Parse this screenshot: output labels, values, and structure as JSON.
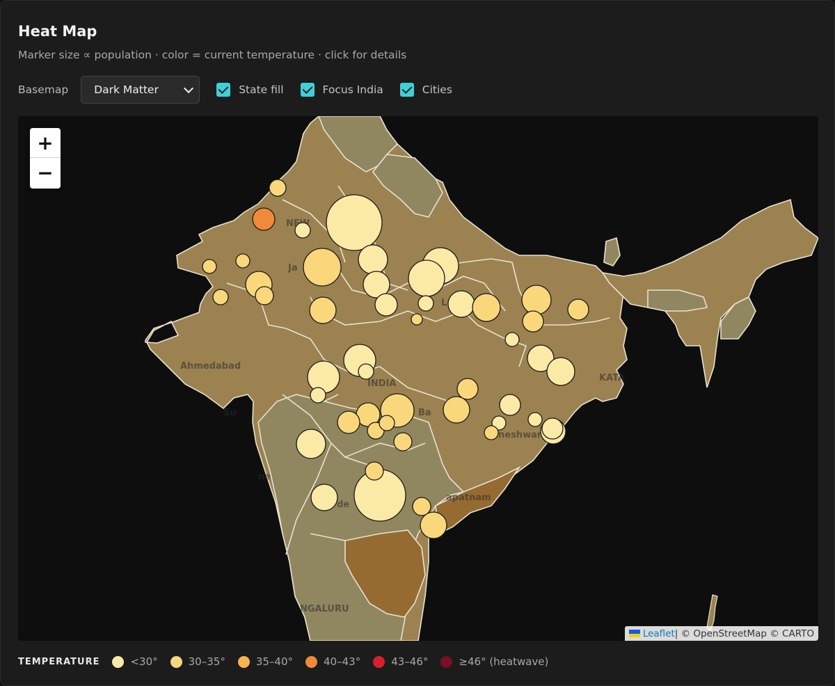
{
  "header": {
    "title": "Heat Map",
    "subtitle": "Marker size ∝ population · color = current temperature · click for details"
  },
  "controls": {
    "basemap_label": "Basemap",
    "basemap_value": "Dark Matter",
    "toggles": [
      {
        "label": "State fill",
        "checked": true
      },
      {
        "label": "Focus India",
        "checked": true
      },
      {
        "label": "Cities",
        "checked": true
      }
    ]
  },
  "map": {
    "zoom_in": "+",
    "zoom_out": "−",
    "basemap_labels": [
      "NEW",
      "Ja",
      "INDIA",
      "Ahmedabad",
      "KATA",
      "neshwar",
      "ne",
      "de",
      "apatnam",
      "NGALURU",
      "Lu",
      "Ba",
      "Su"
    ],
    "attribution": {
      "leaflet": "Leaflet",
      "rest": " | © OpenStreetMap © CARTO"
    },
    "state_colors": {
      "base": "#9b8250",
      "grey": "#908760",
      "dark": "#956b31"
    },
    "marker_stroke": "#1a1a1a"
  },
  "legend": {
    "title": "TEMPERATURE",
    "items": [
      {
        "label": "<30°",
        "color": "#fbe9a6"
      },
      {
        "label": "30–35°",
        "color": "#f9d77a"
      },
      {
        "label": "35–40°",
        "color": "#f7b350"
      },
      {
        "label": "40–43°",
        "color": "#f08a3a"
      },
      {
        "label": "43–46°",
        "color": "#d8202a"
      },
      {
        "label": "≥46° (heatwave)",
        "color": "#7a1025"
      }
    ]
  }
}
